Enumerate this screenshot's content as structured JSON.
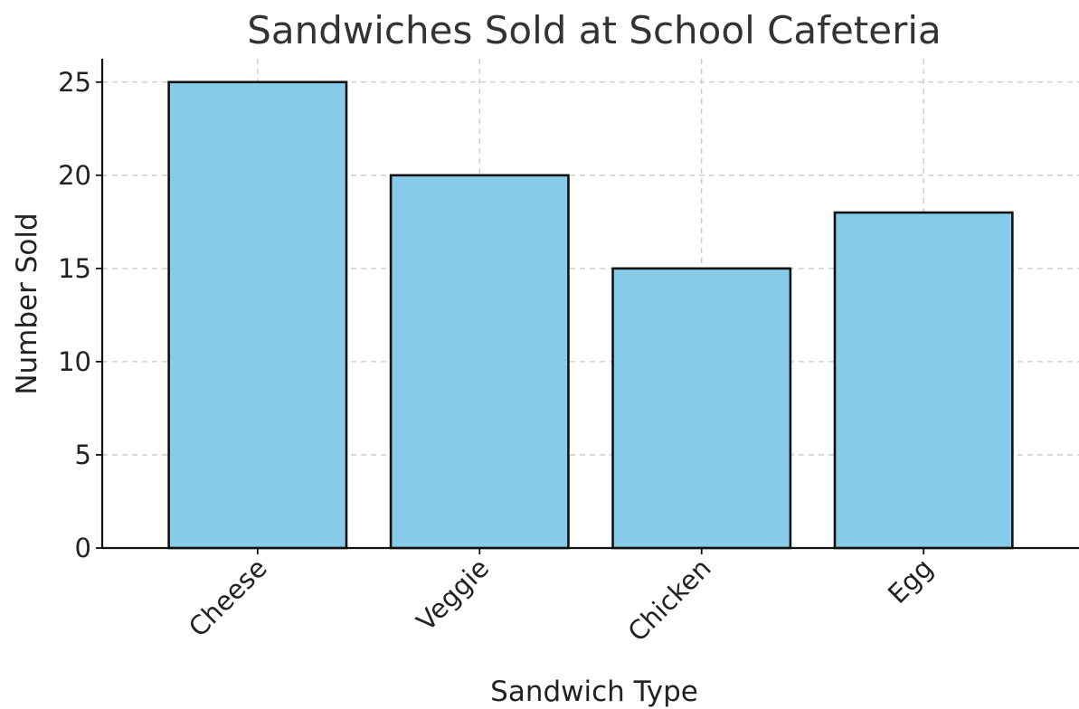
{
  "chart_data": {
    "type": "bar",
    "title": "Sandwiches Sold at School Cafeteria",
    "xlabel": "Sandwich Type",
    "ylabel": "Number Sold",
    "categories": [
      "Cheese",
      "Veggie",
      "Chicken",
      "Egg"
    ],
    "values": [
      25,
      20,
      15,
      18
    ],
    "ylim": [
      0,
      26.25
    ],
    "yticks": [
      0,
      5,
      10,
      15,
      20,
      25
    ],
    "grid": true,
    "x_tick_rotation_deg": 45,
    "colors": {
      "bar_fill": "#87cbeb",
      "bar_edge": "#111111",
      "grid": "#c8c8c8",
      "text": "#222222",
      "title": "#333333"
    }
  }
}
